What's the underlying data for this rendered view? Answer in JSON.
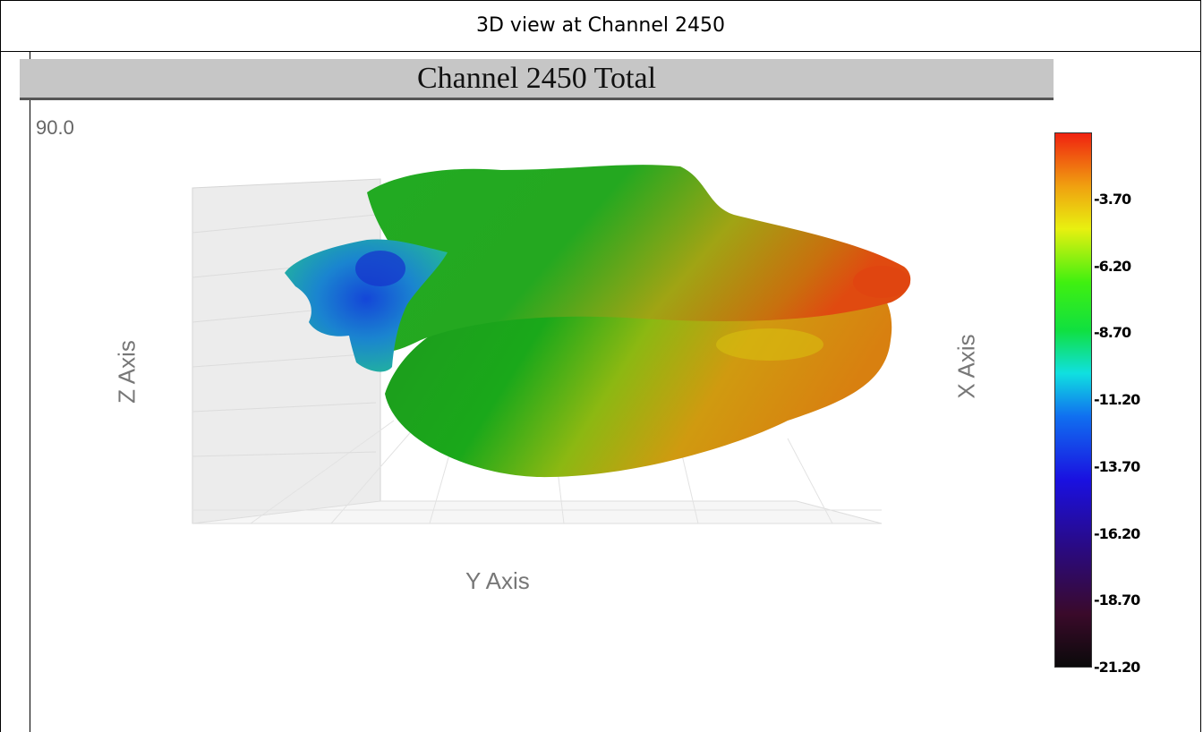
{
  "caption": "3D view at Channel 2450",
  "plot": {
    "title": "Channel 2450 Total",
    "angle_readout": "90.0"
  },
  "chart_data": {
    "type": "surface3d",
    "title": "Channel 2450 Total",
    "xlabel": "X Axis",
    "ylabel": "Y Axis",
    "zlabel": "Z Axis",
    "colorbar": {
      "ticks": [
        "-3.70",
        "-6.20",
        "-8.70",
        "-11.20",
        "-13.70",
        "-16.20",
        "-18.70",
        "-21.20"
      ],
      "range": [
        -21.2,
        -1.2
      ],
      "colors": [
        "#0a0a0a",
        "#3a0a2a",
        "#2a0a80",
        "#1a10e0",
        "#1070f0",
        "#10e0e0",
        "#10e040",
        "#40f010",
        "#e8f010",
        "#f0a010",
        "#f02010"
      ]
    },
    "surface_colors": {
      "min_region": "#1a50d0",
      "mid_region": "#18a818",
      "high_region": "#d89010",
      "max_region": "#e04010"
    }
  }
}
